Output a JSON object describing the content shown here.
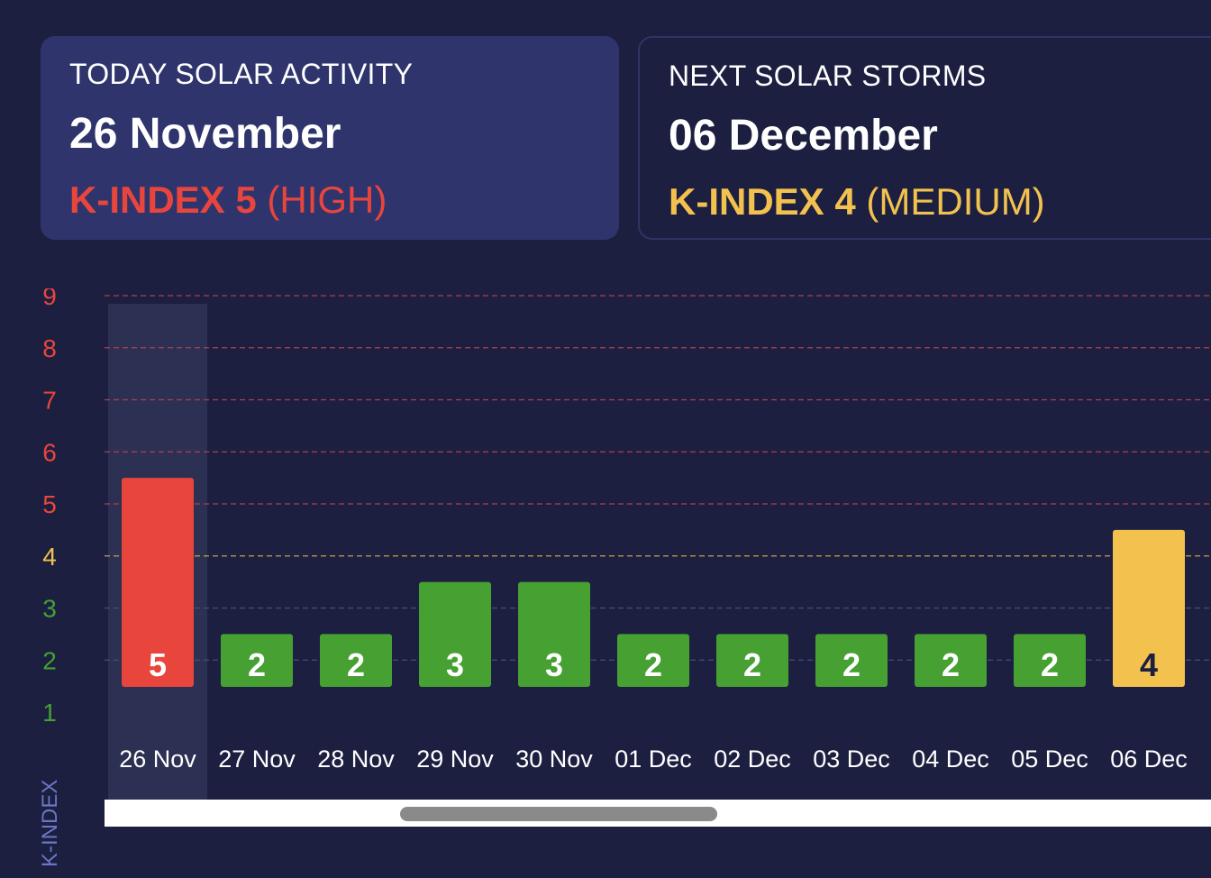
{
  "cards": {
    "today": {
      "title": "TODAY SOLAR ACTIVITY",
      "date": "26 November",
      "kindex_label": "K-INDEX 5",
      "kindex_level": "(HIGH)"
    },
    "next": {
      "title": "NEXT SOLAR STORMS",
      "date": "06 December",
      "kindex_label": "K-INDEX 4",
      "kindex_level": "(MEDIUM)"
    }
  },
  "colors": {
    "high": "#e8453c",
    "medium": "#f2c14e",
    "low": "#46a032",
    "background": "#1c1f40"
  },
  "chart_data": {
    "type": "bar",
    "ylabel": "K-INDEX",
    "ylim": [
      1,
      9
    ],
    "yticks": [
      "1",
      "2",
      "3",
      "4",
      "5",
      "6",
      "7",
      "8",
      "9"
    ],
    "categories": [
      "26 Nov",
      "27 Nov",
      "28 Nov",
      "29 Nov",
      "30 Nov",
      "01 Dec",
      "02 Dec",
      "03 Dec",
      "04 Dec",
      "05 Dec",
      "06 Dec"
    ],
    "values": [
      5,
      2,
      2,
      3,
      3,
      2,
      2,
      2,
      2,
      2,
      4
    ],
    "highlighted_category": "26 Nov",
    "grid": true
  }
}
